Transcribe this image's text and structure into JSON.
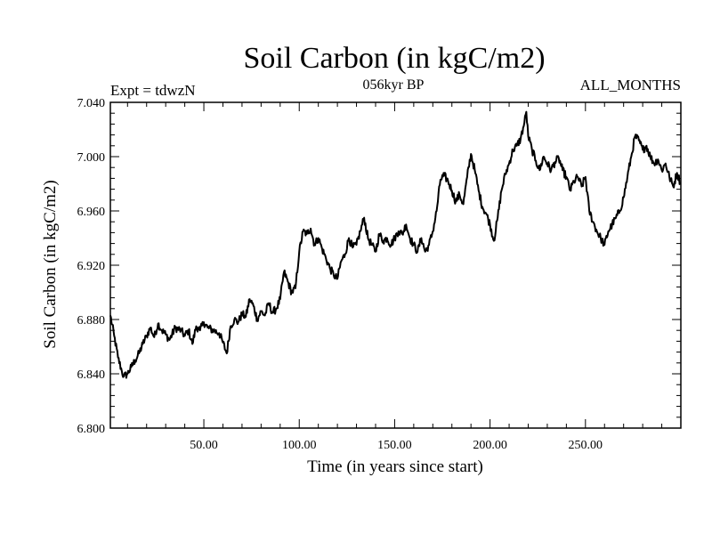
{
  "chart_data": {
    "type": "line",
    "title": "Soil Carbon (in kgC/m2)",
    "subtitle": "056kyr BP",
    "left_label": "Expt = tdwzN",
    "right_label": "ALL_MONTHS",
    "xlabel": "Time (in years since start)",
    "ylabel": "Soil Carbon (in kgC/m2)",
    "xlim": [
      1,
      300
    ],
    "ylim": [
      6.8,
      7.04
    ],
    "x_ticks": [
      50,
      100,
      150,
      200,
      250
    ],
    "x_tick_labels": [
      "50.00",
      "100.00",
      "150.00",
      "200.00",
      "250.00"
    ],
    "y_ticks": [
      6.8,
      6.84,
      6.88,
      6.92,
      6.96,
      7.0,
      7.04
    ],
    "y_tick_labels": [
      "6.800",
      "6.840",
      "6.880",
      "6.920",
      "6.960",
      "7.000",
      "7.040"
    ],
    "line_color": "#000000",
    "series": [
      {
        "name": "Soil Carbon",
        "x": [
          1,
          3,
          5,
          7,
          8,
          10,
          12,
          14,
          16,
          18,
          20,
          22,
          24,
          26,
          28,
          30,
          32,
          35,
          38,
          40,
          42,
          44,
          46,
          48,
          50,
          52,
          55,
          58,
          60,
          62,
          64,
          66,
          68,
          70,
          72,
          74,
          76,
          78,
          80,
          82,
          84,
          86,
          88,
          90,
          92,
          94,
          96,
          98,
          100,
          102,
          104,
          106,
          108,
          110,
          112,
          114,
          116,
          118,
          120,
          122,
          124,
          126,
          128,
          130,
          132,
          134,
          136,
          138,
          140,
          142,
          144,
          146,
          148,
          150,
          152,
          154,
          156,
          158,
          160,
          162,
          164,
          166,
          168,
          170,
          172,
          174,
          176,
          178,
          180,
          182,
          184,
          186,
          188,
          190,
          192,
          194,
          196,
          198,
          200,
          202,
          204,
          206,
          208,
          210,
          212,
          214,
          216,
          218,
          219,
          220,
          222,
          224,
          226,
          228,
          230,
          232,
          234,
          236,
          238,
          240,
          242,
          244,
          246,
          248,
          250,
          252,
          254,
          256,
          258,
          260,
          262,
          264,
          266,
          268,
          270,
          272,
          274,
          276,
          278,
          280,
          282,
          284,
          286,
          288,
          290,
          292,
          294,
          296,
          298,
          300
        ],
        "values": [
          6.883,
          6.868,
          6.852,
          6.842,
          6.838,
          6.84,
          6.845,
          6.85,
          6.855,
          6.862,
          6.868,
          6.874,
          6.867,
          6.877,
          6.872,
          6.869,
          6.865,
          6.874,
          6.872,
          6.868,
          6.872,
          6.862,
          6.875,
          6.872,
          6.878,
          6.874,
          6.872,
          6.87,
          6.863,
          6.855,
          6.875,
          6.88,
          6.878,
          6.884,
          6.882,
          6.895,
          6.89,
          6.88,
          6.886,
          6.883,
          6.892,
          6.885,
          6.888,
          6.895,
          6.915,
          6.908,
          6.9,
          6.903,
          6.93,
          6.945,
          6.943,
          6.947,
          6.935,
          6.94,
          6.932,
          6.925,
          6.918,
          6.913,
          6.91,
          6.923,
          6.928,
          6.94,
          6.933,
          6.935,
          6.945,
          6.955,
          6.94,
          6.935,
          6.93,
          6.943,
          6.938,
          6.94,
          6.935,
          6.94,
          6.945,
          6.943,
          6.95,
          6.94,
          6.935,
          6.93,
          6.94,
          6.93,
          6.935,
          6.945,
          6.96,
          6.983,
          6.986,
          6.982,
          6.975,
          6.967,
          6.972,
          6.965,
          6.985,
          7.002,
          6.99,
          6.975,
          6.963,
          6.958,
          6.95,
          6.938,
          6.955,
          6.975,
          6.987,
          6.995,
          7.005,
          7.008,
          7.013,
          7.025,
          7.033,
          7.015,
          7.005,
          6.997,
          6.99,
          7.0,
          6.995,
          6.99,
          6.996,
          6.999,
          6.99,
          6.985,
          6.975,
          6.982,
          6.985,
          6.978,
          6.985,
          6.96,
          6.952,
          6.945,
          6.94,
          6.935,
          6.945,
          6.95,
          6.955,
          6.96,
          6.97,
          6.985,
          7.0,
          7.015,
          7.012,
          7.005,
          7.008,
          7.0,
          6.995,
          6.998,
          6.99,
          6.995,
          6.985,
          6.978,
          6.988,
          6.98
        ]
      }
    ]
  }
}
